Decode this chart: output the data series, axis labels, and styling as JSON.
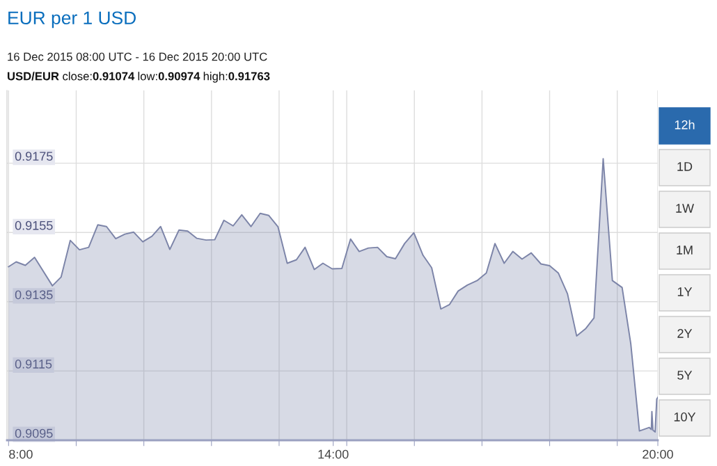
{
  "chart_data": {
    "type": "area",
    "title": "EUR per 1 USD",
    "subtitle": "16 Dec 2015 08:00 UTC - 16 Dec 2015 20:00 UTC",
    "annotations": [
      "USD/EUR close:0.91074 low:0.90974 high:0.91763",
      "12h",
      "1D",
      "1W",
      "1M",
      "1Y",
      "2Y",
      "5Y",
      "10Y"
    ],
    "xlim": [
      7.97,
      20.0
    ],
    "xticks": [
      {
        "value": 8,
        "label": "8:00"
      },
      {
        "value": 9.25,
        "label": null
      },
      {
        "value": 10.5,
        "label": null
      },
      {
        "value": 11.75,
        "label": null
      },
      {
        "value": 13,
        "label": null
      },
      {
        "value": 14,
        "label": "14:00"
      },
      {
        "value": 14.25,
        "label": null
      },
      {
        "value": 15.5,
        "label": null
      },
      {
        "value": 16.75,
        "label": null
      },
      {
        "value": 18,
        "label": null
      },
      {
        "value": 19.25,
        "label": null
      },
      {
        "value": 20,
        "label": "20:00"
      }
    ],
    "ylim": [
      0.9095,
      0.9196
    ],
    "yticks": [
      0.9095,
      0.9115,
      0.9135,
      0.9155,
      0.9175
    ],
    "grid": true,
    "series": [
      {
        "color": "#7c84a8",
        "x": [
          8.0,
          8.14,
          8.31,
          8.48,
          8.81,
          8.97,
          9.14,
          9.31,
          9.48,
          9.65,
          9.81,
          9.98,
          10.15,
          10.31,
          10.48,
          10.65,
          10.81,
          10.98,
          11.15,
          11.31,
          11.48,
          11.65,
          11.81,
          11.98,
          12.15,
          12.31,
          12.48,
          12.65,
          12.81,
          12.98,
          13.15,
          13.32,
          13.48,
          13.65,
          13.81,
          13.98,
          14.16,
          14.32,
          14.48,
          14.65,
          14.82,
          14.99,
          15.15,
          15.32,
          15.49,
          15.66,
          15.82,
          15.99,
          16.15,
          16.31,
          16.48,
          16.66,
          16.83,
          16.99,
          17.16,
          17.32,
          17.49,
          17.66,
          17.84,
          18.0,
          18.16,
          18.33,
          18.5,
          18.67,
          18.82,
          18.99,
          19.16,
          19.34,
          19.5,
          19.66,
          19.84,
          19.88,
          19.89,
          19.91,
          19.95,
          19.98,
          20.0
        ],
        "values": [
          0.91451,
          0.91465,
          0.91455,
          0.91478,
          0.91396,
          0.91421,
          0.91527,
          0.915,
          0.91507,
          0.91572,
          0.91567,
          0.91532,
          0.91545,
          0.91551,
          0.91523,
          0.91539,
          0.91567,
          0.91501,
          0.91557,
          0.91554,
          0.91533,
          0.91528,
          0.91529,
          0.91585,
          0.91569,
          0.91601,
          0.91567,
          0.91605,
          0.91599,
          0.91566,
          0.91461,
          0.91471,
          0.91507,
          0.91443,
          0.91461,
          0.91445,
          0.91446,
          0.91531,
          0.91495,
          0.91505,
          0.91507,
          0.9148,
          0.91474,
          0.91518,
          0.91549,
          0.91484,
          0.91448,
          0.91329,
          0.91342,
          0.91381,
          0.91398,
          0.91411,
          0.91433,
          0.91518,
          0.91461,
          0.91495,
          0.91473,
          0.91491,
          0.91459,
          0.91454,
          0.91433,
          0.91373,
          0.91251,
          0.91273,
          0.91303,
          0.91763,
          0.91411,
          0.91391,
          0.91229,
          0.90977,
          0.90987,
          0.90981,
          0.91033,
          0.90979,
          0.90974,
          0.91069,
          0.91074
        ]
      }
    ]
  }
}
